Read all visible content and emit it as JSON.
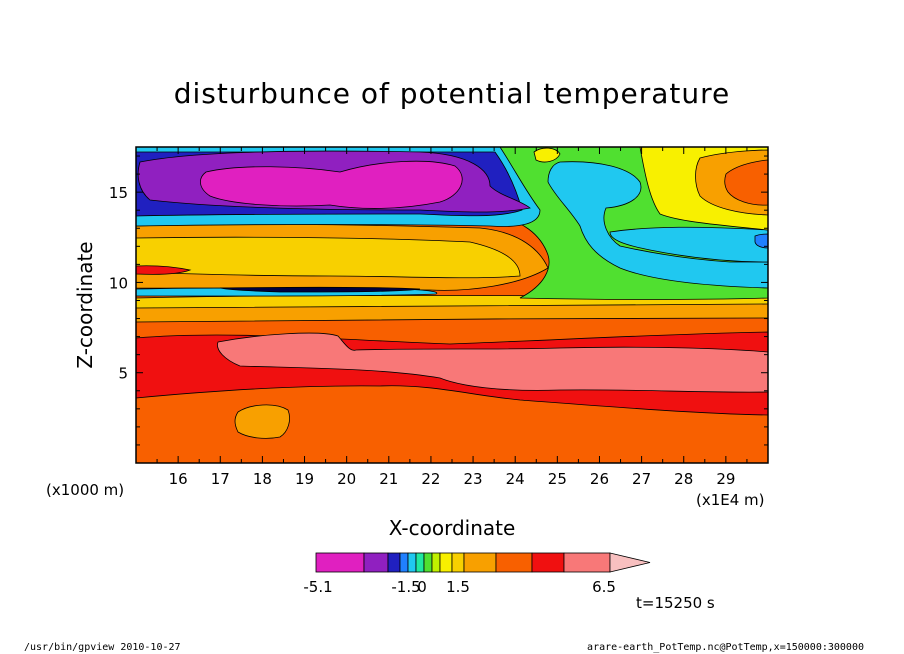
{
  "chart_data": {
    "type": "heatmap",
    "title": "disturbunce of potential temperature",
    "xlabel": "X-coordinate",
    "ylabel": "Z-coordinate",
    "x_unit_left": "(x1000 m)",
    "x_unit_right": "(x1E4 m)",
    "xlim": [
      15.0,
      30.0
    ],
    "ylim": [
      0.0,
      17.5
    ],
    "x_ticks": [
      "16",
      "17",
      "18",
      "19",
      "20",
      "21",
      "22",
      "23",
      "24",
      "25",
      "26",
      "27",
      "28",
      "29"
    ],
    "y_ticks": [
      "5",
      "10",
      "15"
    ],
    "colorbar": {
      "labels": [
        "-5.1",
        "-1.5",
        "0",
        "1.5",
        "6.5"
      ],
      "colors": [
        "#e020c0",
        "#9020c0",
        "#2020c0",
        "#2080ff",
        "#20c8f0",
        "#20e8a0",
        "#50e030",
        "#c0f000",
        "#f8f000",
        "#f8d000",
        "#f8a000",
        "#f86000",
        "#f01010",
        "#f87878"
      ]
    },
    "time_label": "t=15250 s",
    "footer_left": "/usr/bin/gpview   2010-10-27",
    "footer_right": "arare-earth_PotTemp.nc@PotTemp,x=150000:300000"
  }
}
